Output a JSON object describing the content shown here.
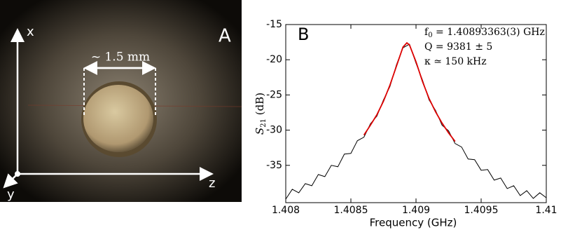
{
  "panel_a": {
    "label": "A",
    "axis_x": "x",
    "axis_y": "y",
    "axis_z": "z",
    "scale": "~ 1.5 mm"
  },
  "chart_data": {
    "type": "line",
    "panel_label": "B",
    "xlabel": "Frequency (GHz)",
    "ylabel": [
      "S",
      "21",
      " (dB)"
    ],
    "annotations": [
      [
        "f",
        "0",
        " = 1.40893363(3) GHz"
      ],
      [
        "Q = 9381 ± 5"
      ],
      [
        "κ ≃ 150 kHz"
      ]
    ],
    "xlim": [
      1.408,
      1.41
    ],
    "xticks": [
      1.408,
      1.4085,
      1.409,
      1.4095,
      1.41
    ],
    "ylim": [
      -40.3,
      -15
    ],
    "yticks": [
      -15,
      -20,
      -25,
      -30,
      -35
    ],
    "series": [
      {
        "color": "#000000",
        "x": [
          1.408,
          1.40805,
          1.4081,
          1.40815,
          1.4082,
          1.40825,
          1.4083,
          1.40835,
          1.4084,
          1.40845,
          1.4085,
          1.40855,
          1.4086,
          1.40865,
          1.4087,
          1.40875,
          1.4088,
          1.40885,
          1.4089,
          1.40895,
          1.409,
          1.40905,
          1.4091,
          1.40915,
          1.4092,
          1.40925,
          1.4093,
          1.40935,
          1.4094,
          1.40945,
          1.4095,
          1.40955,
          1.4096,
          1.40965,
          1.4097,
          1.40975,
          1.4098,
          1.40985,
          1.4099,
          1.40995,
          1.41
        ],
        "values": [
          -39.8,
          -38.4,
          -38.9,
          -37.6,
          -37.9,
          -36.3,
          -36.6,
          -35.0,
          -35.2,
          -33.4,
          -33.3,
          -31.5,
          -31.0,
          -29.1,
          -28.0,
          -25.7,
          -23.8,
          -20.7,
          -18.3,
          -17.8,
          -20.5,
          -22.9,
          -25.7,
          -27.2,
          -29.3,
          -30.1,
          -31.9,
          -32.4,
          -34.1,
          -34.2,
          -35.7,
          -35.6,
          -37.1,
          -36.8,
          -38.3,
          -37.9,
          -39.3,
          -38.6,
          -39.7,
          -38.9,
          -39.6
        ]
      },
      {
        "color": "#dd0000",
        "x": [
          1.4086,
          1.40865,
          1.4087,
          1.40875,
          1.4088,
          1.40885,
          1.4089,
          1.40893,
          1.40895,
          1.409,
          1.40905,
          1.4091,
          1.40915,
          1.4092,
          1.40925,
          1.4093
        ],
        "values": [
          -30.7,
          -29.3,
          -27.8,
          -25.9,
          -23.6,
          -20.9,
          -18.2,
          -17.6,
          -17.9,
          -20.3,
          -23.1,
          -25.5,
          -27.4,
          -29.0,
          -30.4,
          -31.6
        ]
      }
    ]
  }
}
